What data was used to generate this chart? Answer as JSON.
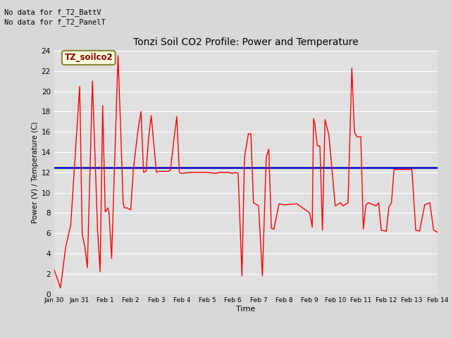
{
  "title": "Tonzi Soil CO2 Profile: Power and Temperature",
  "ylabel": "Power (V) / Temperature (C)",
  "xlabel": "Time",
  "no_data_text1": "No data for f_T2_BattV",
  "no_data_text2": "No data for f_T2_PanelT",
  "legend_box_label": "TZ_soilco2",
  "ylim": [
    0,
    24
  ],
  "yticks": [
    0,
    2,
    4,
    6,
    8,
    10,
    12,
    14,
    16,
    18,
    20,
    22,
    24
  ],
  "blue_line_y": 12.5,
  "fig_bg_color": "#d8d8d8",
  "plot_bg_color": "#e0e0e0",
  "red_color": "#ff0000",
  "blue_color": "#0000cc",
  "x_tick_labels": [
    "Jan 30",
    "Jan 31",
    "Feb 1",
    "Feb 2",
    "Feb 3",
    "Feb 4",
    "Feb 5",
    "Feb 6",
    "Feb 7",
    "Feb 8",
    "Feb 9",
    "Feb 10",
    "Feb 11",
    "Feb 12",
    "Feb 13",
    "Feb 14"
  ],
  "temp_x": [
    0.0,
    0.25,
    0.45,
    0.65,
    1.0,
    1.1,
    1.2,
    1.3,
    1.5,
    1.7,
    1.8,
    1.9,
    2.0,
    2.1,
    2.15,
    2.25,
    2.5,
    2.6,
    2.7,
    2.75,
    2.85,
    3.0,
    3.1,
    3.15,
    3.3,
    3.4,
    3.5,
    3.6,
    3.7,
    3.8,
    4.0,
    4.1,
    4.3,
    4.45,
    4.55,
    4.7,
    4.8,
    4.9,
    5.0,
    5.3,
    5.5,
    5.8,
    6.0,
    6.3,
    6.5,
    6.8,
    7.0,
    7.1,
    7.2,
    7.35,
    7.45,
    7.6,
    7.7,
    7.8,
    8.0,
    8.15,
    8.3,
    8.4,
    8.5,
    8.6,
    8.8,
    9.0,
    9.5,
    10.0,
    10.1,
    10.15,
    10.2,
    10.3,
    10.4,
    10.5,
    10.6,
    10.75,
    11.0,
    11.2,
    11.3,
    11.5,
    11.65,
    11.75,
    11.85,
    12.0,
    12.1,
    12.2,
    12.3,
    12.5,
    12.6,
    12.7,
    12.8,
    13.0,
    13.1,
    13.2,
    13.3,
    13.5,
    13.7,
    13.85,
    14.0,
    14.15,
    14.3,
    14.5,
    14.7,
    14.85,
    15.0
  ],
  "temp_y": [
    2.4,
    0.6,
    4.6,
    6.8,
    20.5,
    5.9,
    4.7,
    2.6,
    21.0,
    6.3,
    2.2,
    18.6,
    8.1,
    8.5,
    8.0,
    3.5,
    23.5,
    16.6,
    9.0,
    8.5,
    8.5,
    8.3,
    12.3,
    13.4,
    16.5,
    18.0,
    12.0,
    12.1,
    15.5,
    17.6,
    12.0,
    12.1,
    12.1,
    12.1,
    12.2,
    15.5,
    17.5,
    12.0,
    11.9,
    12.0,
    12.0,
    12.0,
    12.0,
    11.9,
    12.0,
    12.0,
    11.9,
    12.0,
    11.9,
    1.8,
    13.5,
    15.8,
    15.8,
    9.0,
    8.7,
    1.8,
    13.5,
    14.3,
    6.5,
    6.4,
    8.9,
    8.8,
    8.9,
    8.0,
    6.6,
    17.3,
    16.8,
    14.6,
    14.6,
    6.3,
    17.2,
    15.7,
    8.7,
    9.0,
    8.7,
    9.0,
    22.3,
    16.0,
    15.5,
    15.5,
    6.4,
    8.8,
    9.0,
    8.8,
    8.7,
    9.0,
    6.3,
    6.2,
    8.6,
    9.0,
    12.3,
    12.3,
    12.3,
    12.3,
    12.3,
    6.3,
    6.2,
    8.8,
    9.0,
    6.3,
    6.1
  ]
}
